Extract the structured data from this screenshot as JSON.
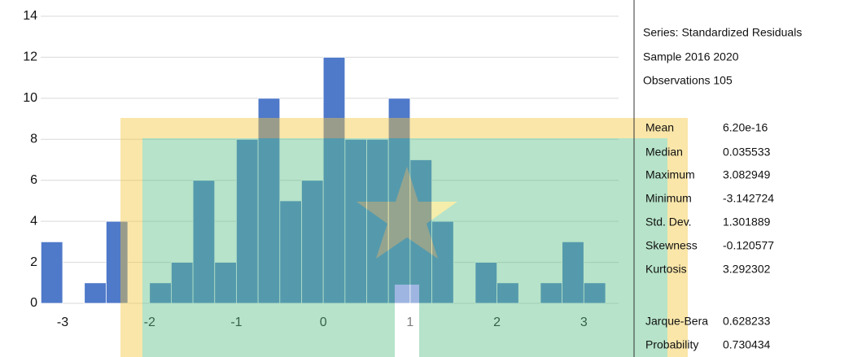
{
  "chart_data": {
    "type": "histogram",
    "bins": [
      -3.25,
      -3.0,
      -2.75,
      -2.5,
      -2.25,
      -2.0,
      -1.75,
      -1.5,
      -1.25,
      -1.0,
      -0.75,
      -0.5,
      -0.25,
      0,
      0.25,
      0.5,
      0.75,
      1.0,
      1.25,
      1.5,
      1.75,
      2.0,
      2.25,
      2.5,
      2.75,
      3.0,
      3.25
    ],
    "counts": [
      3,
      0,
      1,
      4,
      0,
      1,
      2,
      6,
      2,
      8,
      10,
      5,
      6,
      12,
      8,
      8,
      10,
      7,
      4,
      0,
      2,
      1,
      0,
      1,
      3,
      1
    ],
    "color": "#4f79c9",
    "xlim": [
      -3.3,
      3.4
    ],
    "xticks": [
      -3,
      -2,
      -1,
      0,
      1,
      2,
      3
    ],
    "ylim": [
      0,
      14
    ],
    "yticks": [
      0,
      2,
      4,
      6,
      8,
      10,
      12,
      14
    ],
    "grid": true
  },
  "stats": {
    "header": [
      "Series: Standardized Residuals",
      "Sample 2016 2020",
      "Observations 105"
    ],
    "rows": [
      [
        "Mean",
        "6.20e-16"
      ],
      [
        "Median",
        "0.035533"
      ],
      [
        "Maximum",
        "3.082949"
      ],
      [
        "Minimum",
        "-3.142724"
      ],
      [
        "Std. Dev.",
        "1.301889"
      ],
      [
        "Skewness",
        "-0.120577"
      ],
      [
        "Kurtosis",
        "3.292302"
      ],
      [
        "Jarque-Bera",
        "0.628233"
      ],
      [
        "Probability",
        "0.730434"
      ]
    ]
  }
}
